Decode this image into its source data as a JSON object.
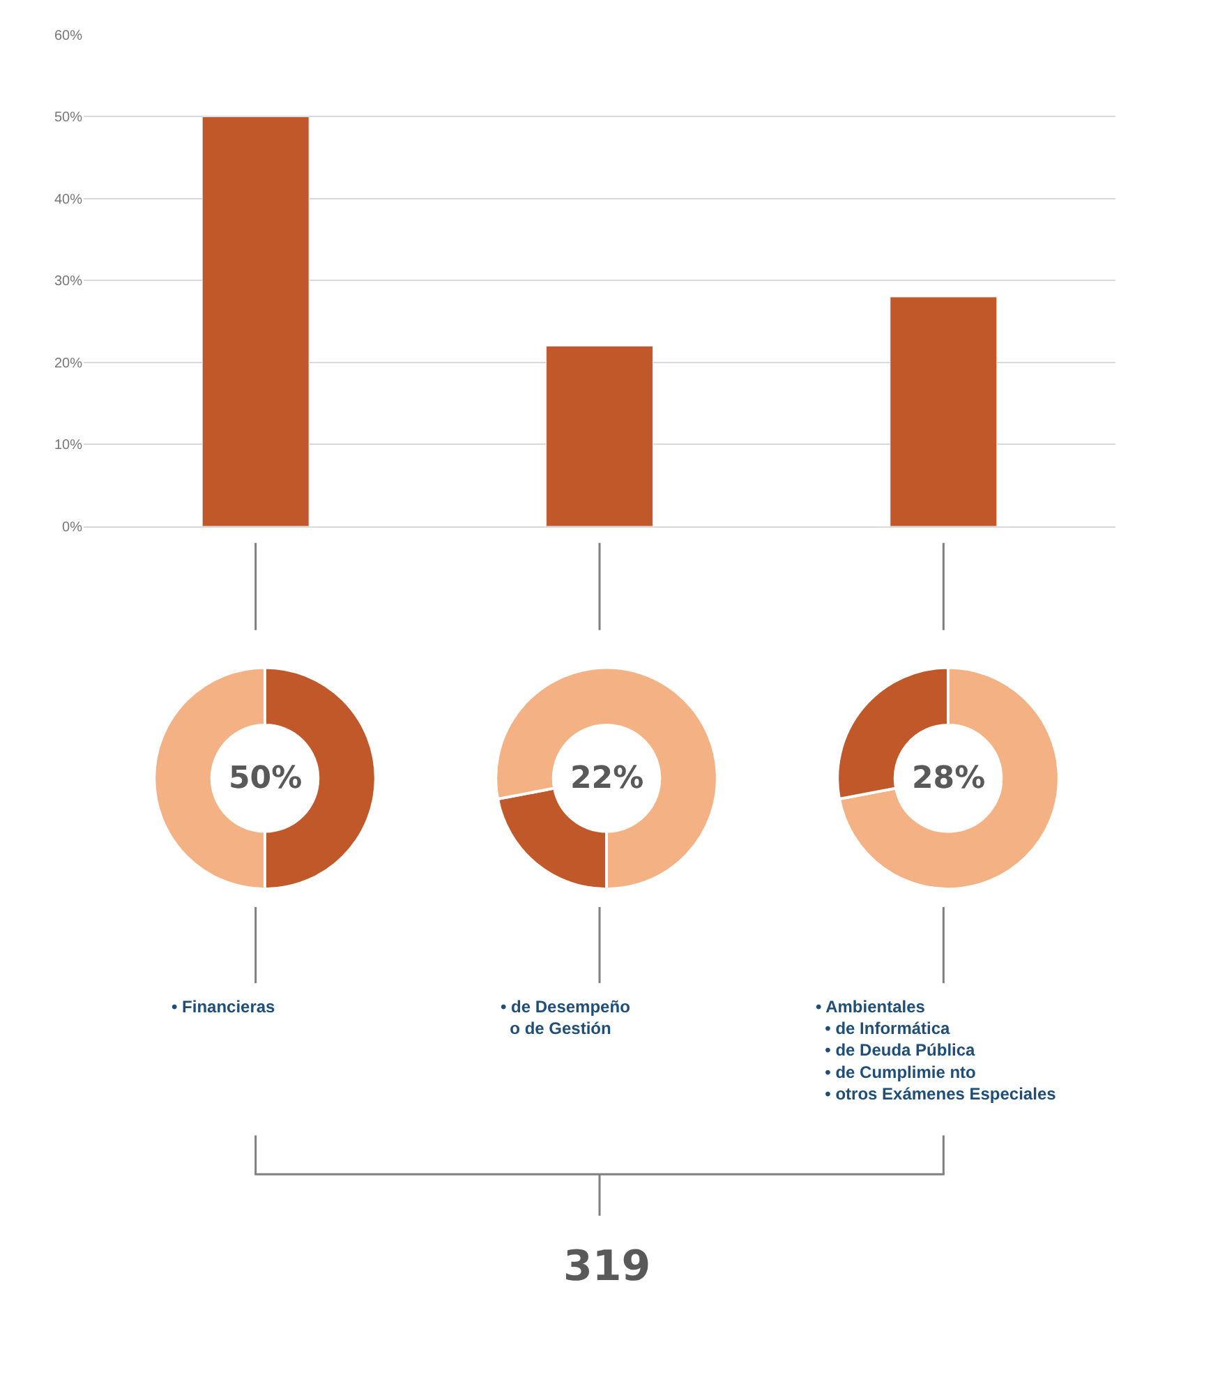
{
  "chart_data": [
    {
      "type": "bar",
      "categories": [
        null,
        null,
        null
      ],
      "values": [
        50,
        22,
        28
      ],
      "color": "#c0582a",
      "ylim": [
        0,
        60
      ],
      "yticks": [
        {
          "value": 0,
          "label": "0%"
        },
        {
          "value": 10,
          "label": "10%"
        },
        {
          "value": 20,
          "label": "20%"
        },
        {
          "value": 30,
          "label": "30%"
        },
        {
          "value": 40,
          "label": "40%"
        },
        {
          "value": 50,
          "label": "50%"
        },
        {
          "value": 60,
          "label": "60%"
        }
      ],
      "grid": "y",
      "annotations": [
        "• Financieras",
        "• de Desempeño\n  o de Gestión",
        "• Ambientales\n  • de Informática\n  • de Deuda Pública\n  • de Cumplimie nto\n  • otros Exámenes Especiales",
        "319"
      ]
    },
    {
      "type": "donut",
      "categories": [
        null,
        null
      ],
      "values": [
        50,
        50
      ],
      "colors": [
        "#c0582a",
        "#f4b183"
      ],
      "annotations": [
        "50%"
      ]
    },
    {
      "type": "donut",
      "categories": [
        null,
        null
      ],
      "values": [
        22,
        78
      ],
      "colors": [
        "#c0582a",
        "#f4b183"
      ],
      "annotations": [
        "22%"
      ]
    },
    {
      "type": "donut",
      "categories": [
        null,
        null
      ],
      "values": [
        72,
        28
      ],
      "colors": [
        "#f4b183",
        "#c0582a"
      ],
      "annotations": [
        "28%"
      ]
    }
  ]
}
